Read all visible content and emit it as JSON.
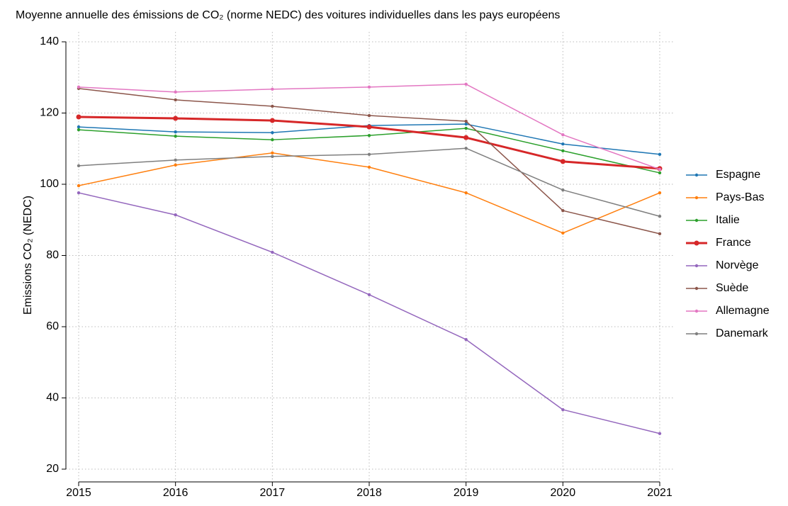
{
  "chart_data": {
    "type": "line",
    "title": "Moyenne annuelle des émissions de CO₂ (norme NEDC) des voitures individuelles dans les pays européens",
    "y_label": "Emissions CO₂ (NEDC)",
    "x": [
      2015,
      2016,
      2017,
      2018,
      2019,
      2020,
      2021
    ],
    "xlim": [
      2015,
      2021
    ],
    "xticks": [
      2015,
      2016,
      2017,
      2018,
      2019,
      2020,
      2021
    ],
    "ylim": [
      20,
      140
    ],
    "yticks": [
      20,
      40,
      60,
      80,
      100,
      120,
      140
    ],
    "grid": true,
    "legend": "right",
    "series": [
      {
        "name": "Espagne",
        "color": "#1f77b4",
        "line_width": 1.5,
        "values": [
          116.1,
          114.7,
          114.5,
          116.5,
          116.9,
          111.3,
          108.4
        ]
      },
      {
        "name": "Pays-Bas",
        "color": "#ff7f0e",
        "line_width": 1.5,
        "values": [
          99.6,
          105.4,
          108.8,
          104.8,
          97.6,
          86.3,
          97.6
        ]
      },
      {
        "name": "Italie",
        "color": "#2ca02c",
        "line_width": 1.5,
        "values": [
          115.3,
          113.5,
          112.5,
          113.7,
          115.7,
          109.4,
          103.2
        ]
      },
      {
        "name": "France",
        "color": "#d62728",
        "line_width": 3,
        "values": [
          118.9,
          118.5,
          117.9,
          116.1,
          113.1,
          106.4,
          104.4
        ]
      },
      {
        "name": "Norvège",
        "color": "#9467bd",
        "line_width": 1.5,
        "values": [
          97.6,
          91.4,
          80.9,
          69.0,
          56.4,
          36.7,
          30.0
        ]
      },
      {
        "name": "Suède",
        "color": "#8c564b",
        "line_width": 1.5,
        "values": [
          126.9,
          123.7,
          121.9,
          119.3,
          117.7,
          92.6,
          86.1
        ]
      },
      {
        "name": "Allemagne",
        "color": "#e377c2",
        "line_width": 1.5,
        "values": [
          127.3,
          125.9,
          126.7,
          127.3,
          128.1,
          113.9,
          104.2
        ]
      },
      {
        "name": "Danemark",
        "color": "#7f7f7f",
        "line_width": 1.5,
        "values": [
          105.2,
          106.8,
          107.8,
          108.4,
          110.1,
          98.4,
          91.0
        ]
      }
    ]
  }
}
